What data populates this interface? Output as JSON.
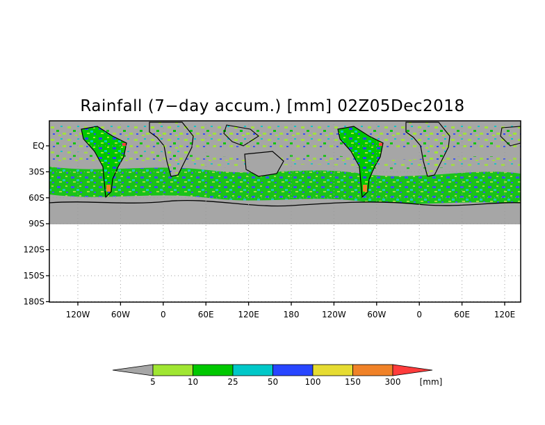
{
  "title": "Rainfall (7−day accum.) [mm] 02Z05Dec2018",
  "map": {
    "x_ticks": [
      "120W",
      "60W",
      "0",
      "60E",
      "120E",
      "180",
      "120W",
      "60W",
      "0",
      "60E",
      "120E"
    ],
    "y_ticks": [
      "EQ",
      "30S",
      "60S",
      "90S",
      "120S",
      "150S",
      "180S"
    ],
    "grid": "dotted"
  },
  "colorbar": {
    "labels": [
      "5",
      "10",
      "25",
      "50",
      "100",
      "150",
      "300"
    ],
    "unit": "[mm]",
    "colors": [
      "#a6a6a6",
      "#a0e632",
      "#00c800",
      "#00c8c8",
      "#2846ff",
      "#e6dc32",
      "#f08228",
      "#ff3c3c"
    ]
  },
  "colors": {
    "land_no_rain": "#a6a6a6",
    "background": "#ffffff"
  }
}
